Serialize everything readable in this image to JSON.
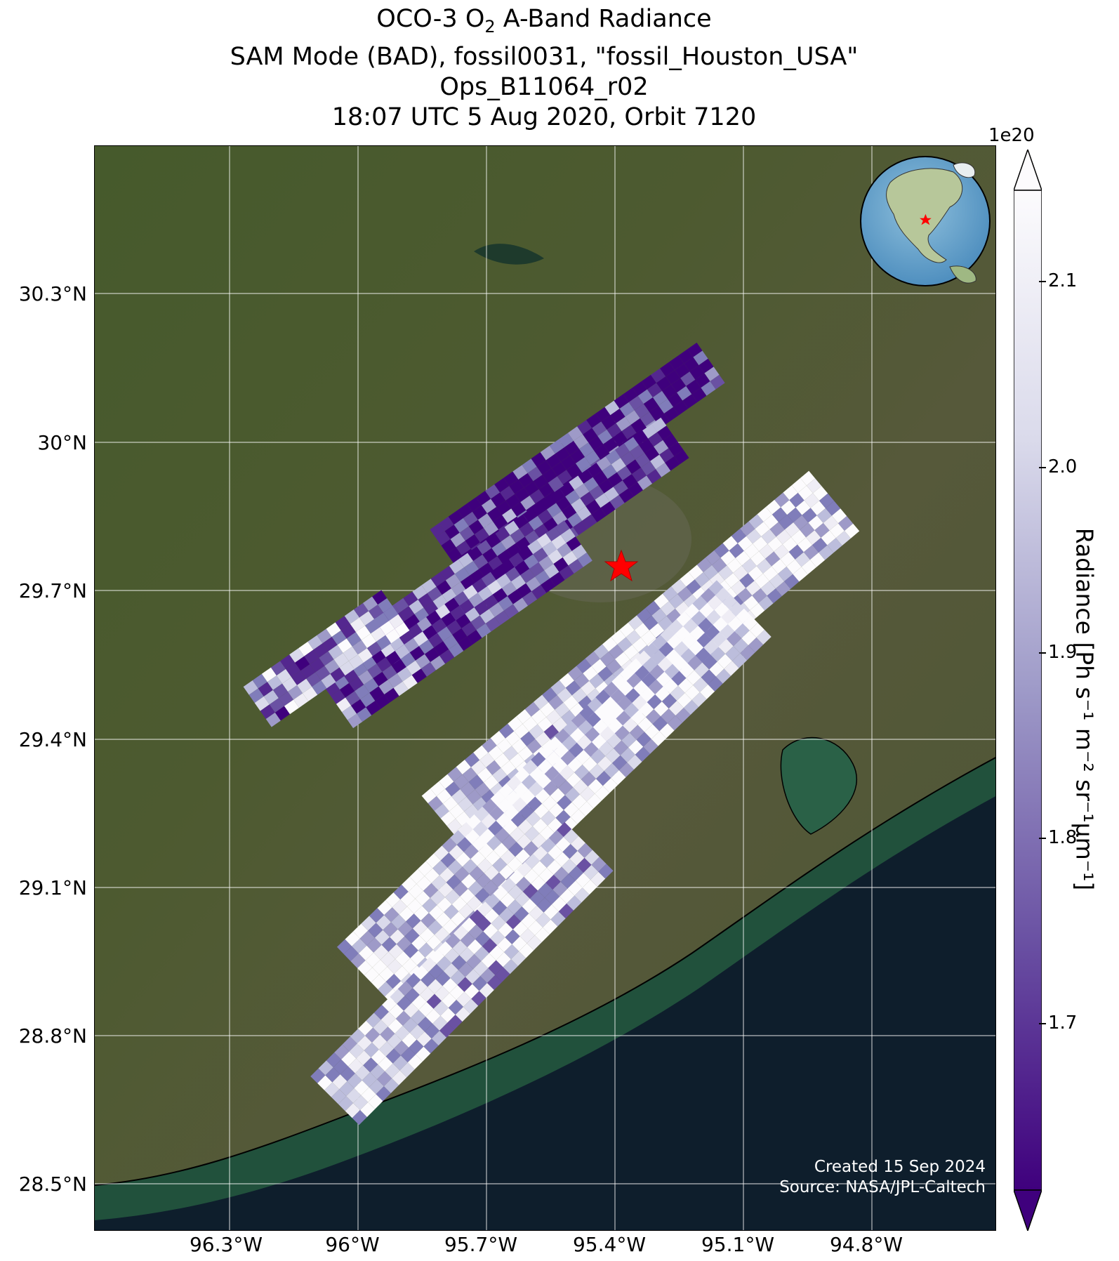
{
  "title": {
    "line1_pre": "OCO-3 O",
    "line1_sub": "2",
    "line1_post": " A-Band Radiance",
    "line2": "SAM Mode (BAD), fossil0031, \"fossil_Houston_USA\"",
    "line3": "Ops_B11064_r02",
    "line4": "18:07 UTC 5 Aug 2020, Orbit 7120"
  },
  "map": {
    "lat_labels": [
      "30.3°N",
      "30°N",
      "29.7°N",
      "29.4°N",
      "29.1°N",
      "28.8°N",
      "28.5°N"
    ],
    "lon_labels": [
      "96.3°W",
      "96°W",
      "95.7°W",
      "95.4°W",
      "95.1°W",
      "94.8°W"
    ],
    "target_marker": "red-star",
    "inset_globe": "north-america-globe"
  },
  "colorbar": {
    "exponent": "1e20",
    "label": "Radiance [Ph s⁻¹ m⁻² sr⁻¹μm⁻¹]",
    "ticks": [
      "2.1",
      "2.0",
      "1.9",
      "1.8",
      "1.7"
    ],
    "colormap": "Purples_r",
    "extend": "both"
  },
  "credits": {
    "created": "Created 15 Sep 2024",
    "source": "Source: NASA/JPL-Caltech"
  },
  "colors": {
    "land": "#44532c",
    "ocean": "#0e1e2c",
    "low": "#3f007d",
    "high": "#fcfbfd",
    "marker": "#ff0000"
  }
}
